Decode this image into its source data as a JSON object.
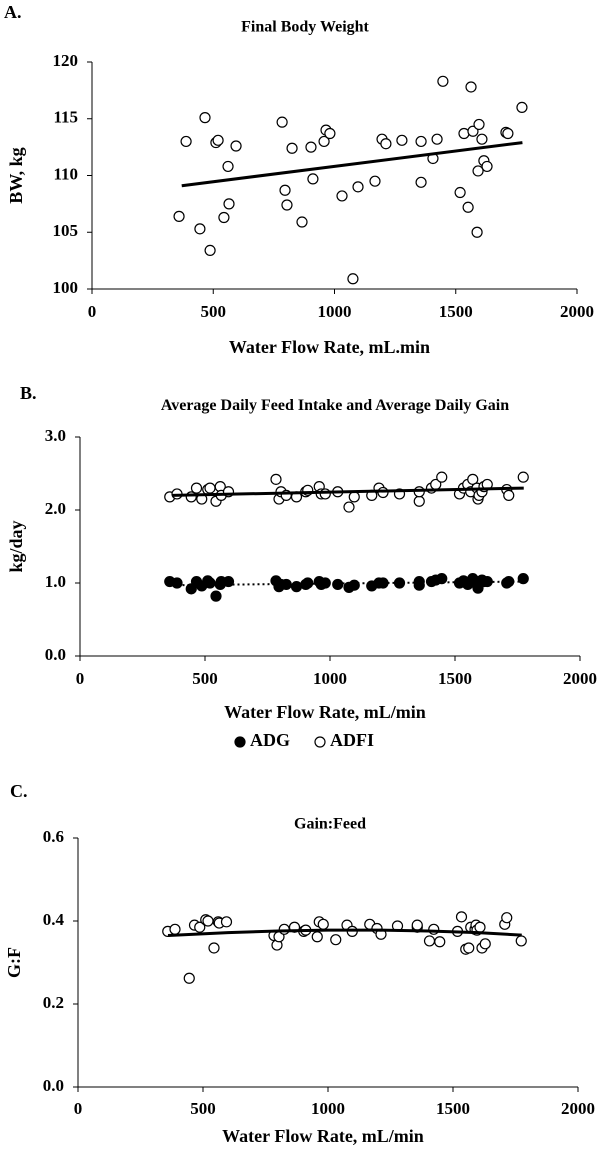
{
  "chart_data": [
    {
      "type": "scatter",
      "panel_label": "A.",
      "title": "Final Body Weight",
      "xlabel": "Water Flow Rate, mL.min",
      "ylabel": "BW, kg",
      "xlim": [
        0,
        2000
      ],
      "ylim": [
        100,
        120
      ],
      "xticks": [
        0,
        500,
        1000,
        1500,
        2000
      ],
      "yticks": [
        100,
        105,
        110,
        115,
        120
      ],
      "x": [
        359,
        388,
        445,
        466,
        487,
        511,
        520,
        544,
        561,
        565,
        594,
        784,
        796,
        804,
        825,
        866,
        903,
        911,
        957,
        965,
        981,
        1031,
        1076,
        1097,
        1167,
        1196,
        1212,
        1278,
        1357,
        1357,
        1406,
        1423,
        1447,
        1518,
        1534,
        1551,
        1563,
        1571,
        1588,
        1592,
        1596,
        1608,
        1616,
        1629,
        1707,
        1715,
        1773
      ],
      "series": [
        {
          "color": "#000000",
          "marker": "open",
          "values": [
            106.4,
            113.0,
            105.3,
            115.1,
            103.4,
            112.9,
            113.1,
            106.3,
            110.8,
            107.5,
            112.6,
            114.7,
            108.7,
            107.4,
            112.4,
            105.9,
            112.5,
            109.7,
            113.0,
            114.0,
            113.7,
            108.2,
            100.9,
            109.0,
            109.5,
            113.2,
            112.8,
            113.1,
            109.4,
            113.0,
            111.5,
            113.2,
            118.3,
            108.5,
            113.7,
            107.2,
            117.8,
            113.9,
            105.0,
            110.4,
            114.5,
            113.2,
            111.3,
            110.8,
            113.8,
            113.7,
            116.0
          ],
          "trend": {
            "x": [
              370,
              1775
            ],
            "y": [
              109.1,
              112.9
            ],
            "style": "solid"
          }
        }
      ]
    },
    {
      "type": "scatter",
      "panel_label": "B.",
      "title": "Average Daily Feed Intake and Average Daily Gain",
      "xlabel": "Water Flow Rate, mL/min",
      "ylabel": "kg/day",
      "xlim": [
        0,
        2000
      ],
      "ylim": [
        0,
        3
      ],
      "xticks": [
        0,
        500,
        1000,
        1500,
        2000
      ],
      "yticks": [
        {
          "value": 0,
          "label": "0.0"
        },
        {
          "value": 1,
          "label": "1.0"
        },
        {
          "value": 2,
          "label": "2.0"
        },
        {
          "value": 3,
          "label": "3.0"
        }
      ],
      "legend": "bottom",
      "x": [
        359,
        388,
        445,
        466,
        487,
        511,
        520,
        544,
        561,
        565,
        594,
        784,
        796,
        804,
        825,
        866,
        903,
        911,
        957,
        965,
        981,
        1031,
        1076,
        1097,
        1167,
        1196,
        1212,
        1278,
        1357,
        1357,
        1406,
        1423,
        1447,
        1518,
        1534,
        1551,
        1563,
        1571,
        1588,
        1592,
        1596,
        1608,
        1616,
        1629,
        1707,
        1715,
        1773
      ],
      "series": [
        {
          "name": "ADG",
          "color": "#000000",
          "marker": "filled",
          "values": [
            1.02,
            1.0,
            0.92,
            1.02,
            0.96,
            1.03,
            1.0,
            0.82,
            0.98,
            1.02,
            1.02,
            1.03,
            0.95,
            0.98,
            0.98,
            0.95,
            0.98,
            1.0,
            1.02,
            0.98,
            1.0,
            0.98,
            0.94,
            0.97,
            0.96,
            1.0,
            1.0,
            1.0,
            0.97,
            1.02,
            1.02,
            1.04,
            1.06,
            1.0,
            1.03,
            0.98,
            1.02,
            1.06,
            1.02,
            0.93,
            1.0,
            1.04,
            1.02,
            1.02,
            1.0,
            1.02,
            1.06
          ],
          "trend": {
            "x": [
              370,
              1775
            ],
            "y": [
              0.97,
              1.02
            ],
            "style": "dotted"
          }
        },
        {
          "name": "ADFI",
          "color": "#000000",
          "marker": "open",
          "values": [
            2.18,
            2.22,
            2.18,
            2.3,
            2.15,
            2.28,
            2.3,
            2.12,
            2.32,
            2.2,
            2.25,
            2.42,
            2.15,
            2.25,
            2.2,
            2.18,
            2.25,
            2.27,
            2.32,
            2.22,
            2.22,
            2.25,
            2.04,
            2.18,
            2.2,
            2.3,
            2.24,
            2.22,
            2.12,
            2.25,
            2.3,
            2.35,
            2.45,
            2.22,
            2.3,
            2.35,
            2.25,
            2.42,
            2.3,
            2.15,
            2.2,
            2.25,
            2.32,
            2.35,
            2.28,
            2.2,
            2.45
          ],
          "trend": {
            "x": [
              370,
              1775
            ],
            "y": [
              2.2,
              2.3
            ],
            "style": "solid"
          }
        }
      ]
    },
    {
      "type": "scatter",
      "panel_label": "C.",
      "title": "Gain:Feed",
      "xlabel": "Water Flow Rate, mL/min",
      "ylabel": "G:F",
      "xlim": [
        0,
        2000
      ],
      "ylim": [
        0,
        0.6
      ],
      "xticks": [
        0,
        500,
        1000,
        1500,
        2000
      ],
      "yticks": [
        {
          "value": 0,
          "label": "0.0"
        },
        0.2,
        0.4,
        0.6
      ],
      "x": [
        359,
        388,
        445,
        466,
        487,
        511,
        520,
        544,
        561,
        565,
        594,
        784,
        796,
        804,
        825,
        866,
        903,
        911,
        957,
        965,
        981,
        1031,
        1076,
        1097,
        1167,
        1196,
        1212,
        1278,
        1357,
        1357,
        1406,
        1423,
        1447,
        1518,
        1534,
        1551,
        1563,
        1571,
        1588,
        1592,
        1596,
        1608,
        1616,
        1629,
        1707,
        1715,
        1773
      ],
      "series": [
        {
          "color": "#000000",
          "marker": "open",
          "values": [
            0.375,
            0.38,
            0.262,
            0.39,
            0.385,
            0.403,
            0.4,
            0.335,
            0.398,
            0.395,
            0.398,
            0.365,
            0.342,
            0.362,
            0.38,
            0.385,
            0.375,
            0.378,
            0.362,
            0.398,
            0.392,
            0.355,
            0.39,
            0.375,
            0.392,
            0.382,
            0.368,
            0.388,
            0.385,
            0.39,
            0.352,
            0.38,
            0.35,
            0.375,
            0.41,
            0.332,
            0.335,
            0.385,
            0.38,
            0.39,
            0.378,
            0.385,
            0.335,
            0.345,
            0.392,
            0.408,
            0.352
          ],
          "trend": {
            "x": [
              360,
              600,
              800,
              1000,
              1200,
              1400,
              1600,
              1775
            ],
            "y": [
              0.365,
              0.372,
              0.376,
              0.378,
              0.378,
              0.376,
              0.372,
              0.366
            ],
            "style": "solid"
          }
        }
      ]
    }
  ]
}
